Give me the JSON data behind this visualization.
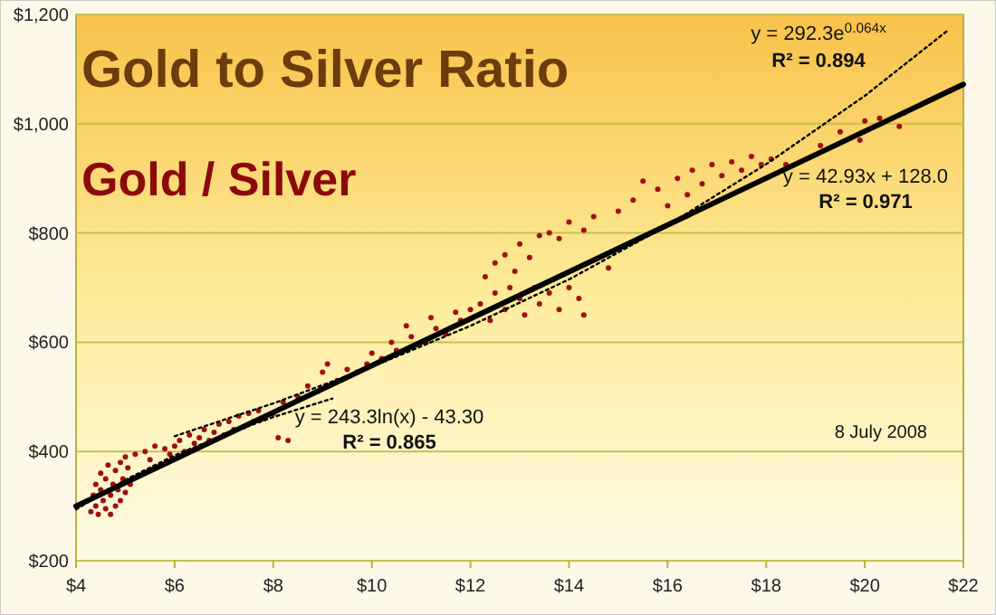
{
  "chart_data": {
    "type": "scatter",
    "title": "Gold to Silver Ratio",
    "subtitle": "Gold / Silver",
    "xlim": [
      4,
      22
    ],
    "xticks": [
      {
        "value": 4,
        "label": "$4"
      },
      {
        "value": 6,
        "label": "$6"
      },
      {
        "value": 8,
        "label": "$8"
      },
      {
        "value": 10,
        "label": "$10"
      },
      {
        "value": 12,
        "label": "$12"
      },
      {
        "value": 14,
        "label": "$14"
      },
      {
        "value": 16,
        "label": "$16"
      },
      {
        "value": 18,
        "label": "$18"
      },
      {
        "value": 20,
        "label": "$20"
      },
      {
        "value": 22,
        "label": "$22"
      }
    ],
    "ylim": [
      200,
      1200
    ],
    "yticks": [
      {
        "value": 200,
        "label": "$200"
      },
      {
        "value": 400,
        "label": "$400"
      },
      {
        "value": 600,
        "label": "$600"
      },
      {
        "value": 800,
        "label": "$800"
      },
      {
        "value": 1000,
        "label": "$1,000"
      },
      {
        "value": 1200,
        "label": "$1,200"
      }
    ],
    "grid": "y",
    "series": [
      {
        "color": "#a01010",
        "marker": "circle",
        "x": [
          4.3,
          4.35,
          4.4,
          4.4,
          4.45,
          4.5,
          4.5,
          4.55,
          4.6,
          4.6,
          4.65,
          4.7,
          4.7,
          4.75,
          4.8,
          4.8,
          4.85,
          4.9,
          4.9,
          4.95,
          5.0,
          5.0,
          5.05,
          5.1,
          5.2,
          5.4,
          5.5,
          5.6,
          5.8,
          5.9,
          6.0,
          6.1,
          6.2,
          6.3,
          6.4,
          6.5,
          6.6,
          6.7,
          6.8,
          6.9,
          7.0,
          7.1,
          7.2,
          7.3,
          7.4,
          7.5,
          7.6,
          7.7,
          7.8,
          8.0,
          8.1,
          8.3,
          8.2,
          8.5,
          8.7,
          8.9,
          9.0,
          9.1,
          9.3,
          9.5,
          9.7,
          9.9,
          10.0,
          10.2,
          10.4,
          10.5,
          10.7,
          10.8,
          11.0,
          11.1,
          11.2,
          11.3,
          11.5,
          11.7,
          11.8,
          12.0,
          12.2,
          12.4,
          12.5,
          12.7,
          12.8,
          13.0,
          13.1,
          13.3,
          13.4,
          13.6,
          13.8,
          14.0,
          14.2,
          14.3,
          12.3,
          12.5,
          12.7,
          12.9,
          13.0,
          13.2,
          13.4,
          13.6,
          13.8,
          14.0,
          14.3,
          14.5,
          14.8,
          15.0,
          15.3,
          15.5,
          15.8,
          16.0,
          16.2,
          16.4,
          16.5,
          16.7,
          16.9,
          17.1,
          17.3,
          17.5,
          17.7,
          17.9,
          18.1,
          18.4,
          19.1,
          19.5,
          19.9,
          20.0,
          20.3,
          20.7,
          20.8
        ],
        "values": [
          290,
          320,
          300,
          340,
          285,
          330,
          360,
          310,
          295,
          350,
          375,
          320,
          285,
          340,
          365,
          300,
          330,
          380,
          310,
          350,
          325,
          390,
          370,
          340,
          395,
          400,
          385,
          410,
          405,
          395,
          410,
          420,
          400,
          430,
          415,
          425,
          440,
          420,
          435,
          450,
          430,
          455,
          440,
          465,
          445,
          470,
          455,
          475,
          460,
          470,
          425,
          420,
          490,
          500,
          520,
          510,
          545,
          560,
          530,
          550,
          545,
          560,
          580,
          570,
          600,
          585,
          630,
          610,
          600,
          600,
          645,
          625,
          615,
          655,
          640,
          660,
          670,
          640,
          690,
          660,
          700,
          680,
          650,
          700,
          670,
          690,
          660,
          700,
          680,
          650,
          720,
          745,
          760,
          730,
          780,
          755,
          795,
          800,
          790,
          820,
          805,
          830,
          736,
          840,
          860,
          895,
          880,
          850,
          900,
          870,
          915,
          890,
          925,
          905,
          930,
          915,
          940,
          925,
          935,
          925,
          960,
          985,
          970,
          1005,
          1010,
          995,
          1020
        ]
      },
      {
        "type": "line",
        "color": "#000000",
        "line_style": "solid",
        "marker": "none",
        "x": [
          4,
          22
        ],
        "values": [
          300,
          1072
        ]
      },
      {
        "type": "line",
        "color": "#000000",
        "line_style": "dotted",
        "marker": "none",
        "x": [
          6,
          8,
          10,
          12,
          14,
          16,
          18,
          20,
          21.7
        ],
        "values": [
          428,
          488,
          555,
          630,
          715,
          814,
          926,
          1051,
          1172
        ]
      },
      {
        "type": "line",
        "color": "#000000",
        "line_style": "dotted",
        "marker": "none",
        "x": [
          4,
          5,
          6,
          7,
          8,
          9.2
        ],
        "values": [
          294,
          348,
          393,
          430,
          463,
          497
        ]
      }
    ],
    "annotations": [
      "y = 292.3e$^{0.064x}$",
      "R² = 0.894",
      "y = 42.93x + 128.0",
      "R² = 0.971",
      "y = 243.3ln(x) - 43.30",
      "R² = 0.865",
      "8 July 2008"
    ]
  }
}
